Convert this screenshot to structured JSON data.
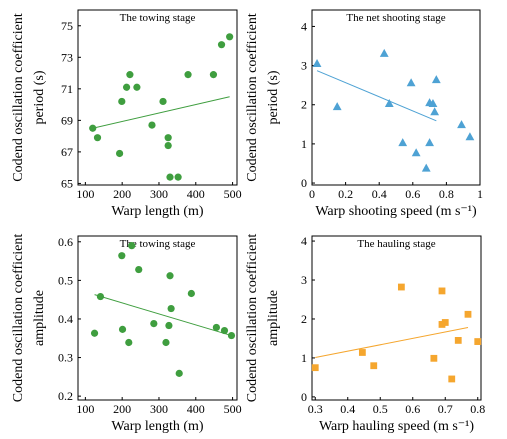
{
  "chart_data": [
    {
      "type": "scatter",
      "title": "The towing stage",
      "xlabel": "Warp length (m)",
      "ylabel": [
        "Codend oscillation coefficient",
        "period (s)"
      ],
      "xlim": [
        80,
        512
      ],
      "ylim": [
        64.9,
        76
      ],
      "xticks": [
        100,
        200,
        300,
        400,
        500
      ],
      "yticks": [
        65,
        67,
        69,
        71,
        73,
        75
      ],
      "grid": false,
      "marker": "circle",
      "color": "#3f9e3f",
      "series": [
        {
          "x": [
            120,
            133,
            193,
            199,
            212,
            221,
            240,
            281,
            311,
            325,
            325,
            330,
            352,
            379,
            448,
            470,
            492
          ],
          "y": [
            68.5,
            67.9,
            66.9,
            70.2,
            71.1,
            71.9,
            71.1,
            68.7,
            70.2,
            67.9,
            67.4,
            65.4,
            65.4,
            71.9,
            71.9,
            73.8,
            74.3
          ]
        }
      ],
      "trendline": {
        "x": [
          120,
          492
        ],
        "y": [
          68.5,
          70.5
        ]
      }
    },
    {
      "type": "scatter",
      "title": "The net shooting stage",
      "xlabel": "Warp shooting speed (m s⁻¹)",
      "ylabel": [
        "Codend oscillation coefficient",
        "period (s)"
      ],
      "xlim": [
        0,
        1
      ],
      "ylim": [
        -0.05,
        4.42
      ],
      "xticks": [
        0,
        0.2,
        0.4,
        0.6,
        0.8,
        1
      ],
      "yticks": [
        0,
        1,
        2,
        3,
        4
      ],
      "grid": false,
      "marker": "triangle",
      "color": "#4ea2d4",
      "series": [
        {
          "x": [
            0.03,
            0.15,
            0.43,
            0.46,
            0.54,
            0.59,
            0.62,
            0.68,
            0.7,
            0.7,
            0.72,
            0.73,
            0.74,
            0.89,
            0.94
          ],
          "y": [
            3.05,
            1.95,
            3.31,
            2.03,
            1.03,
            2.56,
            0.77,
            0.38,
            2.05,
            1.03,
            2.03,
            1.82,
            2.64,
            1.49,
            1.18
          ]
        }
      ],
      "trendline": {
        "x": [
          0.03,
          0.74
        ],
        "y": [
          2.87,
          1.59
        ]
      }
    },
    {
      "type": "scatter",
      "title": "The towing stage",
      "xlabel": "Warp length (m)",
      "ylabel": [
        "Codend oscillation coefficient",
        "amplitude"
      ],
      "xlim": [
        80,
        512
      ],
      "ylim": [
        0.19,
        0.615
      ],
      "xticks": [
        100,
        200,
        300,
        400,
        500
      ],
      "yticks": [
        0.2,
        0.3,
        0.4,
        0.5,
        0.6
      ],
      "grid": false,
      "marker": "circle",
      "color": "#3f9e3f",
      "series": [
        {
          "x": [
            125,
            141,
            199,
            201,
            218,
            226,
            245,
            286,
            319,
            327,
            330,
            333,
            355,
            388,
            456,
            478,
            497
          ],
          "y": [
            0.363,
            0.458,
            0.564,
            0.373,
            0.339,
            0.59,
            0.528,
            0.388,
            0.339,
            0.383,
            0.512,
            0.427,
            0.259,
            0.466,
            0.378,
            0.37,
            0.357
          ]
        }
      ],
      "trendline": {
        "x": [
          125,
          497
        ],
        "y": [
          0.463,
          0.357
        ]
      }
    },
    {
      "type": "scatter",
      "title": "The hauling stage",
      "xlabel": "Warp hauling speed (m s⁻¹)",
      "ylabel": [
        "Codend oscillation coefficient",
        "amplitude"
      ],
      "xlim": [
        0.29,
        0.81
      ],
      "ylim": [
        -0.08,
        4.13
      ],
      "xticks": [
        0.3,
        0.4,
        0.5,
        0.6,
        0.7,
        0.8
      ],
      "yticks": [
        0,
        1,
        2,
        3,
        4
      ],
      "grid": false,
      "marker": "square",
      "color": "#f5a62e",
      "series": [
        {
          "x": [
            0.3,
            0.445,
            0.48,
            0.565,
            0.665,
            0.69,
            0.69,
            0.7,
            0.72,
            0.74,
            0.77,
            0.8
          ],
          "y": [
            0.75,
            1.14,
            0.8,
            2.82,
            0.99,
            2.72,
            1.86,
            1.91,
            0.46,
            1.45,
            2.12,
            1.42
          ]
        }
      ],
      "trendline": {
        "x": [
          0.3,
          0.77
        ],
        "y": [
          1.01,
          1.78
        ]
      }
    }
  ]
}
